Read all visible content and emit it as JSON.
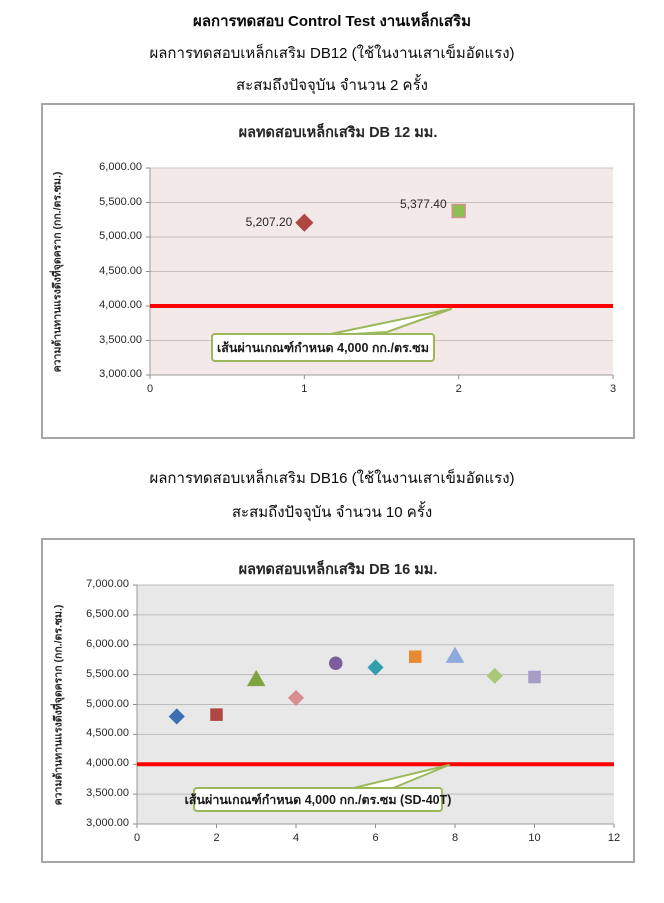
{
  "header": {
    "line1": "ผลการทดสอบ Control Test งานเหล็กเสริม",
    "line2": "ผลการทดสอบเหล็กเสริม DB12 (ใช้ในงานเสาเข็มอัดแรง)",
    "line3": "สะสมถึงปัจจุบัน จำนวน 2 ครั้ง"
  },
  "section2": {
    "line1": "ผลการทดสอบเหล็กเสริม DB16 (ใช้ในงานเสาเข็มอัดแรง)",
    "line2": "สะสมถึงปัจจุบัน จำนวน 10 ครั้ง"
  },
  "chart_data": [
    {
      "type": "scatter",
      "title": "ผลทดสอบเหล็กเสริม DB 12 มม.",
      "ylabel": "ความต้านทานแรงดึงที่จุดคราก (กก./ตร.ซม.)",
      "xlabel": "",
      "xlim": [
        0,
        3
      ],
      "ylim": [
        3000,
        6000
      ],
      "grid": true,
      "legend": "none",
      "plot_bg": "#f2e9e8",
      "grid_color": "#cbbfbf",
      "marker": 8,
      "xticks": [
        {
          "v": 0,
          "label": "0"
        },
        {
          "v": 1,
          "label": "1"
        },
        {
          "v": 2,
          "label": "2"
        },
        {
          "v": 3,
          "label": "3"
        }
      ],
      "yticks": [
        {
          "v": 3000,
          "label": "3,000.00"
        },
        {
          "v": 3500,
          "label": "3,500.00"
        },
        {
          "v": 4000,
          "label": "4,000.00"
        },
        {
          "v": 4500,
          "label": "4,500.00"
        },
        {
          "v": 5000,
          "label": "5,000.00"
        },
        {
          "v": 5500,
          "label": "5,500.00"
        },
        {
          "v": 6000,
          "label": "6,000.00"
        }
      ],
      "points": [
        {
          "x": 1,
          "y": 5207.2,
          "label": "5,207.20",
          "shape": "diamond",
          "fill": "#ae4742",
          "stroke": "#ae4742",
          "label_dy": 0
        },
        {
          "x": 2,
          "y": 5377.4,
          "label": "5,377.40",
          "shape": "square",
          "fill": "#8fbf50",
          "stroke": "#d29593",
          "label_dy": -6
        }
      ],
      "ref_line": {
        "y": 4000,
        "color": "#fe0101",
        "label": "เส้นผ่านเกณฑ์กำหนด 4,000 กก./ตร.ซม"
      }
    },
    {
      "type": "scatter",
      "title": "ผลทดสอบเหล็กเสริม DB 16 มม.",
      "ylabel": "ความต้านทานแรงดึงที่จุดคราก (กก./ตร.ซม.)",
      "xlabel": "",
      "xlim": [
        0,
        12
      ],
      "ylim": [
        3000,
        7000
      ],
      "grid": true,
      "legend": "none",
      "plot_bg": "#e8e8e8",
      "grid_color": "#bdbdbd",
      "marker": 7,
      "xticks": [
        {
          "v": 0,
          "label": "0"
        },
        {
          "v": 2,
          "label": "2"
        },
        {
          "v": 4,
          "label": "4"
        },
        {
          "v": 6,
          "label": "6"
        },
        {
          "v": 8,
          "label": "8"
        },
        {
          "v": 10,
          "label": "10"
        },
        {
          "v": 12,
          "label": "12"
        }
      ],
      "yticks": [
        {
          "v": 3000,
          "label": "3,000.00"
        },
        {
          "v": 3500,
          "label": "3,500.00"
        },
        {
          "v": 4000,
          "label": "4,000.00"
        },
        {
          "v": 4500,
          "label": "4,500.00"
        },
        {
          "v": 5000,
          "label": "5,000.00"
        },
        {
          "v": 5500,
          "label": "5,500.00"
        },
        {
          "v": 6000,
          "label": "6,000.00"
        },
        {
          "v": 6500,
          "label": "6,500.00"
        },
        {
          "v": 7000,
          "label": "7,000.00"
        }
      ],
      "points": [
        {
          "x": 1,
          "y": 4800,
          "shape": "diamond",
          "fill": "#3e6db2",
          "stroke": "#3e6db2"
        },
        {
          "x": 2,
          "y": 4830,
          "shape": "square",
          "fill": "#b04742",
          "stroke": "#b04742"
        },
        {
          "x": 3,
          "y": 5420,
          "shape": "triangle",
          "fill": "#7fa33f",
          "stroke": "#7fa33f"
        },
        {
          "x": 4,
          "y": 5110,
          "shape": "diamond",
          "fill": "#d78f93",
          "stroke": "#d78f93"
        },
        {
          "x": 5,
          "y": 5690,
          "shape": "circle",
          "fill": "#7a5e9e",
          "stroke": "#7a5e9e"
        },
        {
          "x": 6,
          "y": 5620,
          "shape": "diamond",
          "fill": "#2f9faf",
          "stroke": "#2f9faf"
        },
        {
          "x": 7,
          "y": 5800,
          "shape": "square",
          "fill": "#e78b33",
          "stroke": "#e78b33"
        },
        {
          "x": 8,
          "y": 5810,
          "shape": "triangle",
          "fill": "#8ea9db",
          "stroke": "#8ea9db"
        },
        {
          "x": 9,
          "y": 5480,
          "shape": "diamond",
          "fill": "#a9c978",
          "stroke": "#a9c978"
        },
        {
          "x": 10,
          "y": 5460,
          "shape": "square",
          "fill": "#a79cc8",
          "stroke": "#a79cc8"
        }
      ],
      "ref_line": {
        "y": 4000,
        "color": "#fe0101",
        "label": "เส้นผ่านเกณฑ์กำหนด 4,000 กก./ตร.ซม (SD-40T)"
      }
    }
  ]
}
